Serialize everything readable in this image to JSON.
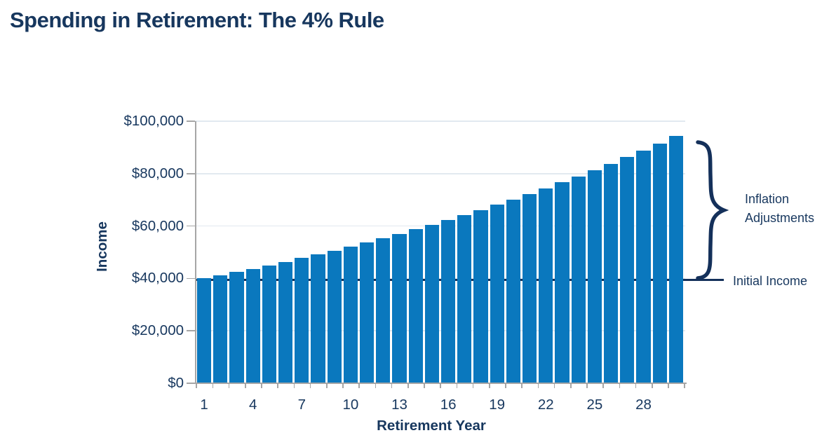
{
  "page": {
    "title": "Spending in Retirement: The 4% Rule"
  },
  "colors": {
    "title_navy": "#17375e",
    "bar_blue": "#0a78be",
    "line_navy": "#14305a",
    "axis_gray": "#a6a6a6",
    "gridline_gray": "#e2e9f0"
  },
  "chart_data": {
    "type": "bar",
    "title": "Spending in Retirement: The 4% Rule",
    "xlabel": "Retirement Year",
    "ylabel": "Income",
    "x": [
      1,
      2,
      3,
      4,
      5,
      6,
      7,
      8,
      9,
      10,
      11,
      12,
      13,
      14,
      15,
      16,
      17,
      18,
      19,
      20,
      21,
      22,
      23,
      24,
      25,
      26,
      27,
      28,
      29,
      30
    ],
    "values": [
      40000,
      41200,
      42436,
      43709,
      45018,
      46368,
      47759,
      49192,
      50668,
      52188,
      53754,
      55366,
      57027,
      58738,
      60500,
      62315,
      64185,
      66110,
      68094,
      70136,
      72240,
      74408,
      76640,
      78939,
      81307,
      83746,
      86259,
      88847,
      91512,
      94257
    ],
    "ylim": [
      0,
      100000
    ],
    "yticks": [
      0,
      20000,
      40000,
      60000,
      80000,
      100000
    ],
    "ytick_labels": [
      "$0",
      "$20,000",
      "$40,000",
      "$60,000",
      "$80,000",
      "$100,000"
    ],
    "xticks": [
      1,
      4,
      7,
      10,
      13,
      16,
      19,
      22,
      25,
      28
    ],
    "grid": "horizontal",
    "legend": "none",
    "bar_color": "#0a78be",
    "annotations": [
      {
        "type": "brace",
        "label": "Inflation Adjustments",
        "from_value": 40000,
        "to_value": 94257
      },
      {
        "type": "hline",
        "label": "Initial Income",
        "value": 40000
      }
    ]
  }
}
